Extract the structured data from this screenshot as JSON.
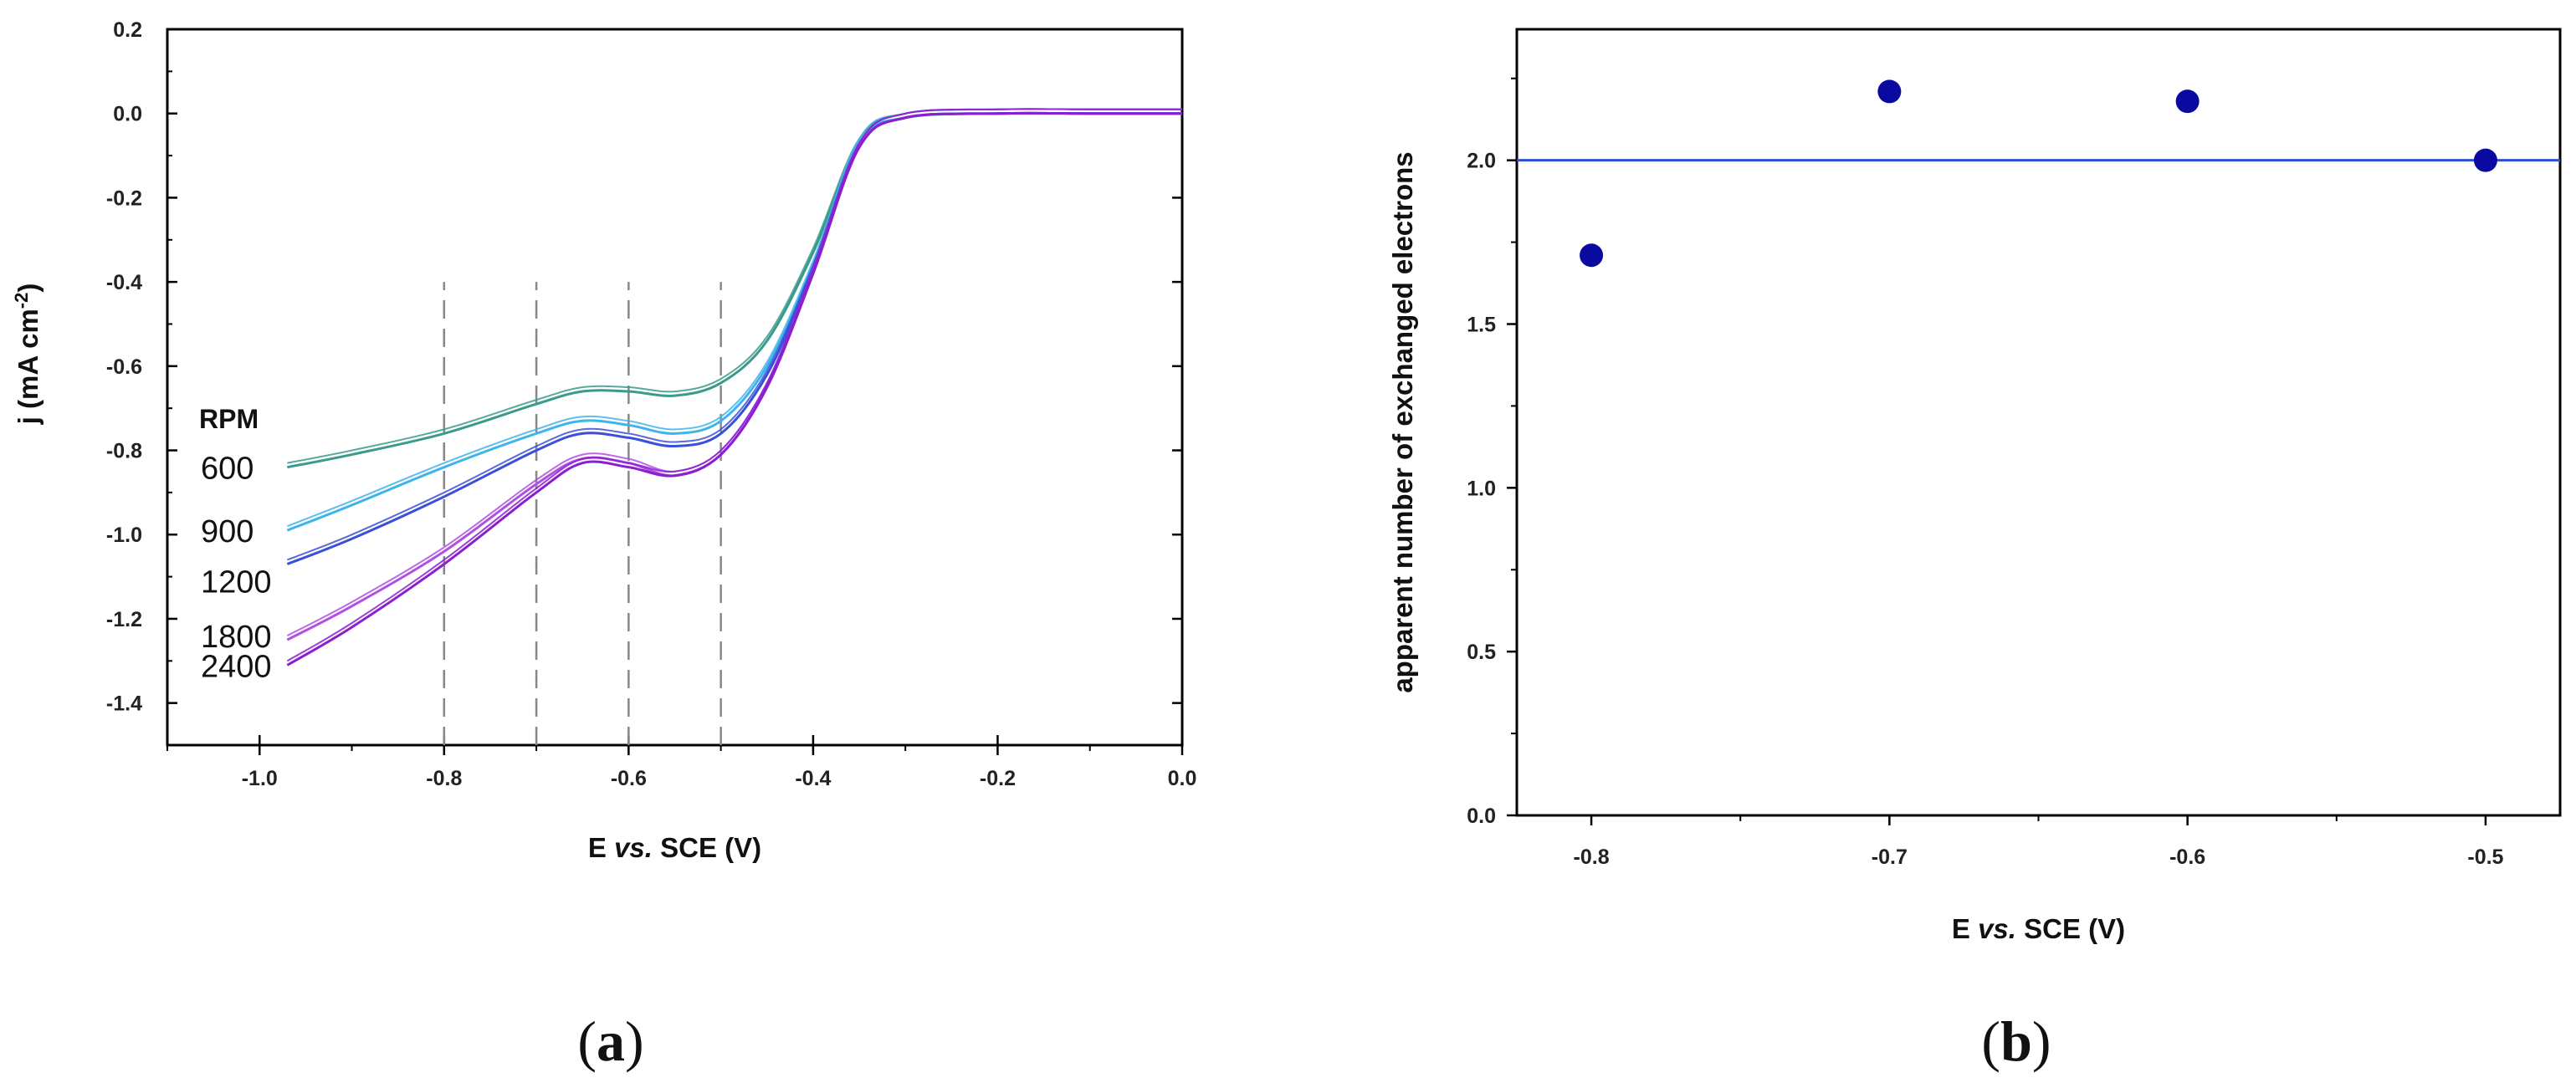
{
  "panels": {
    "a": {
      "label": "(a)",
      "letter": "a"
    },
    "b": {
      "label": "(b)",
      "letter": "b"
    }
  },
  "chart_data": [
    {
      "type": "line",
      "panel": "a",
      "xlabel": "E vs. SCE (V)",
      "xlabel_parts": {
        "pre": "E ",
        "italic": "vs.",
        "post": " SCE (V)"
      },
      "ylabel": "j (mA cm-2)",
      "ylabel_parts": {
        "pre": "j (mA cm",
        "sup": "-2",
        "post": ")"
      },
      "xlim": [
        -1.1,
        0.0
      ],
      "ylim": [
        -1.5,
        0.2
      ],
      "xticks": [
        -1.0,
        -0.8,
        -0.6,
        -0.4,
        -0.2,
        0.0
      ],
      "xtick_labels": [
        "-1.0",
        "-0.8",
        "-0.6",
        "-0.4",
        "-0.2",
        "0.0"
      ],
      "yticks": [
        0.2,
        0.0,
        -0.2,
        -0.4,
        -0.6,
        -0.8,
        -1.0,
        -1.2,
        -1.4
      ],
      "ytick_labels": [
        "0.2",
        "0.0",
        "-0.2",
        "-0.4",
        "-0.6",
        "-0.8",
        "-1.0",
        "-1.2",
        "-1.4"
      ],
      "grid": false,
      "legend_title": "RPM",
      "reference_lines_x": [
        -0.8,
        -0.7,
        -0.6,
        -0.5
      ],
      "reference_line_range": [
        -1.5,
        -0.4
      ],
      "x": [
        -0.97,
        -0.9,
        -0.8,
        -0.7,
        -0.65,
        -0.6,
        -0.55,
        -0.5,
        -0.45,
        -0.4,
        -0.35,
        -0.3,
        -0.2,
        -0.1,
        0.0
      ],
      "series": [
        {
          "name": "600",
          "color": "#3a9a8c",
          "values": [
            -0.84,
            -0.81,
            -0.76,
            -0.69,
            -0.66,
            -0.66,
            -0.67,
            -0.64,
            -0.54,
            -0.33,
            -0.07,
            -0.01,
            0.0,
            0.0,
            0.0
          ]
        },
        {
          "name": "900",
          "color": "#3fb4ec",
          "values": [
            -0.99,
            -0.93,
            -0.84,
            -0.76,
            -0.73,
            -0.74,
            -0.76,
            -0.73,
            -0.6,
            -0.36,
            -0.07,
            -0.01,
            0.0,
            0.0,
            0.0
          ]
        },
        {
          "name": "1200",
          "color": "#3a50d8",
          "values": [
            -1.07,
            -1.01,
            -0.91,
            -0.8,
            -0.76,
            -0.77,
            -0.79,
            -0.76,
            -0.62,
            -0.37,
            -0.08,
            -0.01,
            0.0,
            0.0,
            0.0
          ]
        },
        {
          "name": "1800",
          "color": "#b050e0",
          "values": [
            -1.25,
            -1.17,
            -1.04,
            -0.88,
            -0.82,
            -0.83,
            -0.86,
            -0.81,
            -0.65,
            -0.38,
            -0.08,
            -0.01,
            0.0,
            0.0,
            0.0
          ]
        },
        {
          "name": "2400",
          "color": "#8a1fd0",
          "values": [
            -1.31,
            -1.22,
            -1.07,
            -0.9,
            -0.83,
            -0.84,
            -0.86,
            -0.81,
            -0.65,
            -0.38,
            -0.08,
            -0.01,
            0.0,
            0.0,
            0.0
          ]
        }
      ]
    },
    {
      "type": "scatter",
      "panel": "b",
      "xlabel": "E vs. SCE (V)",
      "xlabel_parts": {
        "pre": "E ",
        "italic": "vs.",
        "post": " SCE (V)"
      },
      "ylabel": "apparent number of exchanged electrons",
      "xlim": [
        -0.825,
        -0.475
      ],
      "ylim": [
        0.0,
        2.4
      ],
      "xticks": [
        -0.8,
        -0.7,
        -0.6,
        -0.5
      ],
      "xtick_labels": [
        "-0.8",
        "-0.7",
        "-0.6",
        "-0.5"
      ],
      "yticks": [
        0.0,
        0.5,
        1.0,
        1.5,
        2.0
      ],
      "ytick_labels": [
        "0.0",
        "0.5",
        "1.0",
        "1.5",
        "2.0"
      ],
      "grid": false,
      "reference_line_y": 2.0,
      "reference_line_color": "#2a4fd6",
      "point_color": "#0a0aa0",
      "x": [
        -0.8,
        -0.7,
        -0.6,
        -0.5
      ],
      "y": [
        1.71,
        2.21,
        2.18,
        2.0
      ]
    }
  ]
}
